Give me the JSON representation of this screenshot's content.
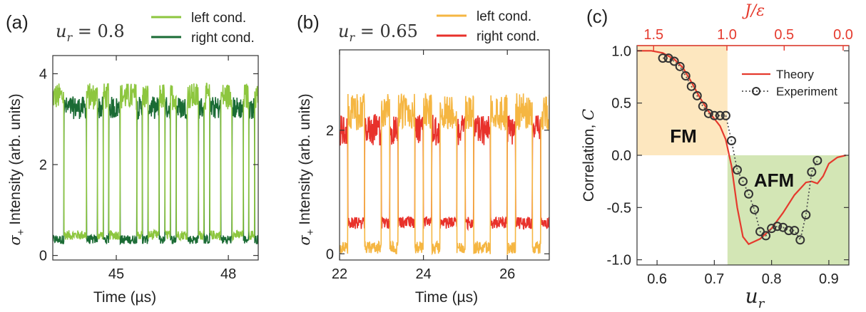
{
  "chart_data": [
    {
      "type": "line",
      "panel_label": "(a)",
      "annotation": "u_r = 0.8",
      "xlabel": "Time (µs)",
      "ylabel": "σ+ Intensity (arb. units)",
      "xlim": [
        43.3,
        48.8
      ],
      "ylim": [
        -0.1,
        4.4
      ],
      "x_ticks": [
        45,
        48
      ],
      "x_tick_labels": [
        "45",
        "48"
      ],
      "y_ticks": [
        0,
        2,
        4
      ],
      "y_tick_labels": [
        "0",
        "2",
        "4"
      ],
      "legend_position": "top-right",
      "series": [
        {
          "name": "left cond.",
          "color": "#8dc63f",
          "high": 3.5,
          "low": 0.45
        },
        {
          "name": "right cond.",
          "color": "#1a6b34",
          "high": 3.25,
          "low": 0.35
        }
      ],
      "x": [
        43.3,
        43.45,
        43.6,
        43.75,
        43.9,
        44.05,
        44.2,
        44.35,
        44.5,
        44.65,
        44.8,
        44.95,
        45.1,
        45.25,
        45.4,
        45.55,
        45.7,
        45.85,
        46.0,
        46.15,
        46.3,
        46.45,
        46.6,
        46.75,
        46.9,
        47.05,
        47.2,
        47.35,
        47.5,
        47.65,
        47.8,
        47.95,
        48.1,
        48.25,
        48.4,
        48.55,
        48.7
      ],
      "left_state": [
        1,
        1,
        0,
        0,
        0,
        0,
        1,
        1,
        0,
        1,
        0,
        0,
        1,
        1,
        1,
        0,
        1,
        0,
        0,
        1,
        0,
        1,
        0,
        0,
        1,
        1,
        0,
        1,
        0,
        0,
        1,
        1,
        0,
        0,
        1,
        0,
        1
      ]
    },
    {
      "type": "line",
      "panel_label": "(b)",
      "annotation": "u_r = 0.65",
      "xlabel": "Time (µs)",
      "ylabel": "σ+ Intensity (arb. units)",
      "xlim": [
        22.0,
        27.0
      ],
      "ylim": [
        -0.1,
        3.3
      ],
      "x_ticks": [
        22,
        24,
        26
      ],
      "x_tick_labels": [
        "22",
        "24",
        "26"
      ],
      "y_ticks": [
        0,
        2
      ],
      "y_tick_labels": [
        "0",
        "2"
      ],
      "legend_position": "top-right",
      "series": [
        {
          "name": "left cond.",
          "color": "#f5b642",
          "high": 2.3,
          "low": 0.1
        },
        {
          "name": "right cond.",
          "color": "#e8312b",
          "high": 2.0,
          "low": 0.5
        }
      ],
      "x": [
        22.0,
        22.2,
        22.4,
        22.6,
        22.8,
        23.0,
        23.2,
        23.4,
        23.6,
        23.8,
        24.0,
        24.2,
        24.4,
        24.6,
        24.8,
        25.0,
        25.2,
        25.4,
        25.6,
        25.8,
        26.0,
        26.2,
        26.4,
        26.6,
        26.8
      ],
      "left_state": [
        0,
        1,
        1,
        0,
        0,
        1,
        0,
        1,
        1,
        0,
        1,
        0,
        1,
        1,
        0,
        1,
        0,
        0,
        1,
        1,
        0,
        1,
        1,
        0,
        1
      ]
    },
    {
      "type": "line",
      "panel_label": "(c)",
      "xlabel": "u_r",
      "ylabel": "Correlation, C",
      "top_xlabel": "J/ε",
      "xlim": [
        0.565,
        0.935
      ],
      "ylim": [
        -1.05,
        1.05
      ],
      "x_ticks": [
        0.6,
        0.7,
        0.8,
        0.9
      ],
      "x_tick_labels": [
        "0.6",
        "0.7",
        "0.8",
        "0.9"
      ],
      "y_ticks": [
        1.0,
        0.5,
        0.0,
        -0.5,
        -1.0
      ],
      "y_tick_labels": [
        "1.0",
        "0.5",
        "0.0",
        "-0.5",
        "-1.0"
      ],
      "top_ticks_at_ur": [
        0.594,
        0.722,
        0.822,
        0.925
      ],
      "top_tick_labels": [
        "1.5",
        "1.0",
        "0.5",
        "0.0"
      ],
      "regions": [
        {
          "label": "FM",
          "x0": 0.565,
          "x1": 0.723,
          "y0": 0.0,
          "y1": 1.05,
          "color": "#fde7bf"
        },
        {
          "label": "AFM",
          "x0": 0.723,
          "x1": 0.935,
          "y0": -1.05,
          "y1": 0.0,
          "color": "#d3e6b5"
        }
      ],
      "legend_position": "top-right",
      "series": [
        {
          "name": "Theory",
          "color": "#e53a2d",
          "x": [
            0.565,
            0.59,
            0.61,
            0.63,
            0.645,
            0.66,
            0.675,
            0.69,
            0.7,
            0.71,
            0.72,
            0.73,
            0.74,
            0.75,
            0.76,
            0.78,
            0.8,
            0.82,
            0.84,
            0.86,
            0.87,
            0.88,
            0.89,
            0.9,
            0.915,
            0.93
          ],
          "y": [
            1.0,
            1.0,
            0.98,
            0.92,
            0.84,
            0.7,
            0.55,
            0.42,
            0.35,
            0.28,
            0.15,
            -0.1,
            -0.5,
            -0.78,
            -0.85,
            -0.8,
            -0.7,
            -0.55,
            -0.38,
            -0.26,
            -0.25,
            -0.27,
            -0.2,
            -0.08,
            -0.02,
            0.0
          ]
        },
        {
          "name": "Experiment",
          "color": "#555555",
          "x": [
            0.61,
            0.62,
            0.63,
            0.64,
            0.65,
            0.66,
            0.67,
            0.68,
            0.69,
            0.7,
            0.71,
            0.72,
            0.73,
            0.74,
            0.75,
            0.76,
            0.77,
            0.78,
            0.79,
            0.8,
            0.81,
            0.82,
            0.83,
            0.84,
            0.85,
            0.86,
            0.87,
            0.88
          ],
          "y": [
            0.93,
            0.93,
            0.9,
            0.85,
            0.76,
            0.66,
            0.57,
            0.47,
            0.4,
            0.38,
            0.38,
            0.38,
            0.14,
            -0.14,
            -0.25,
            -0.37,
            -0.52,
            -0.73,
            -0.77,
            -0.7,
            -0.68,
            -0.69,
            -0.72,
            -0.72,
            -0.81,
            -0.57,
            -0.16,
            -0.05
          ]
        }
      ]
    }
  ]
}
